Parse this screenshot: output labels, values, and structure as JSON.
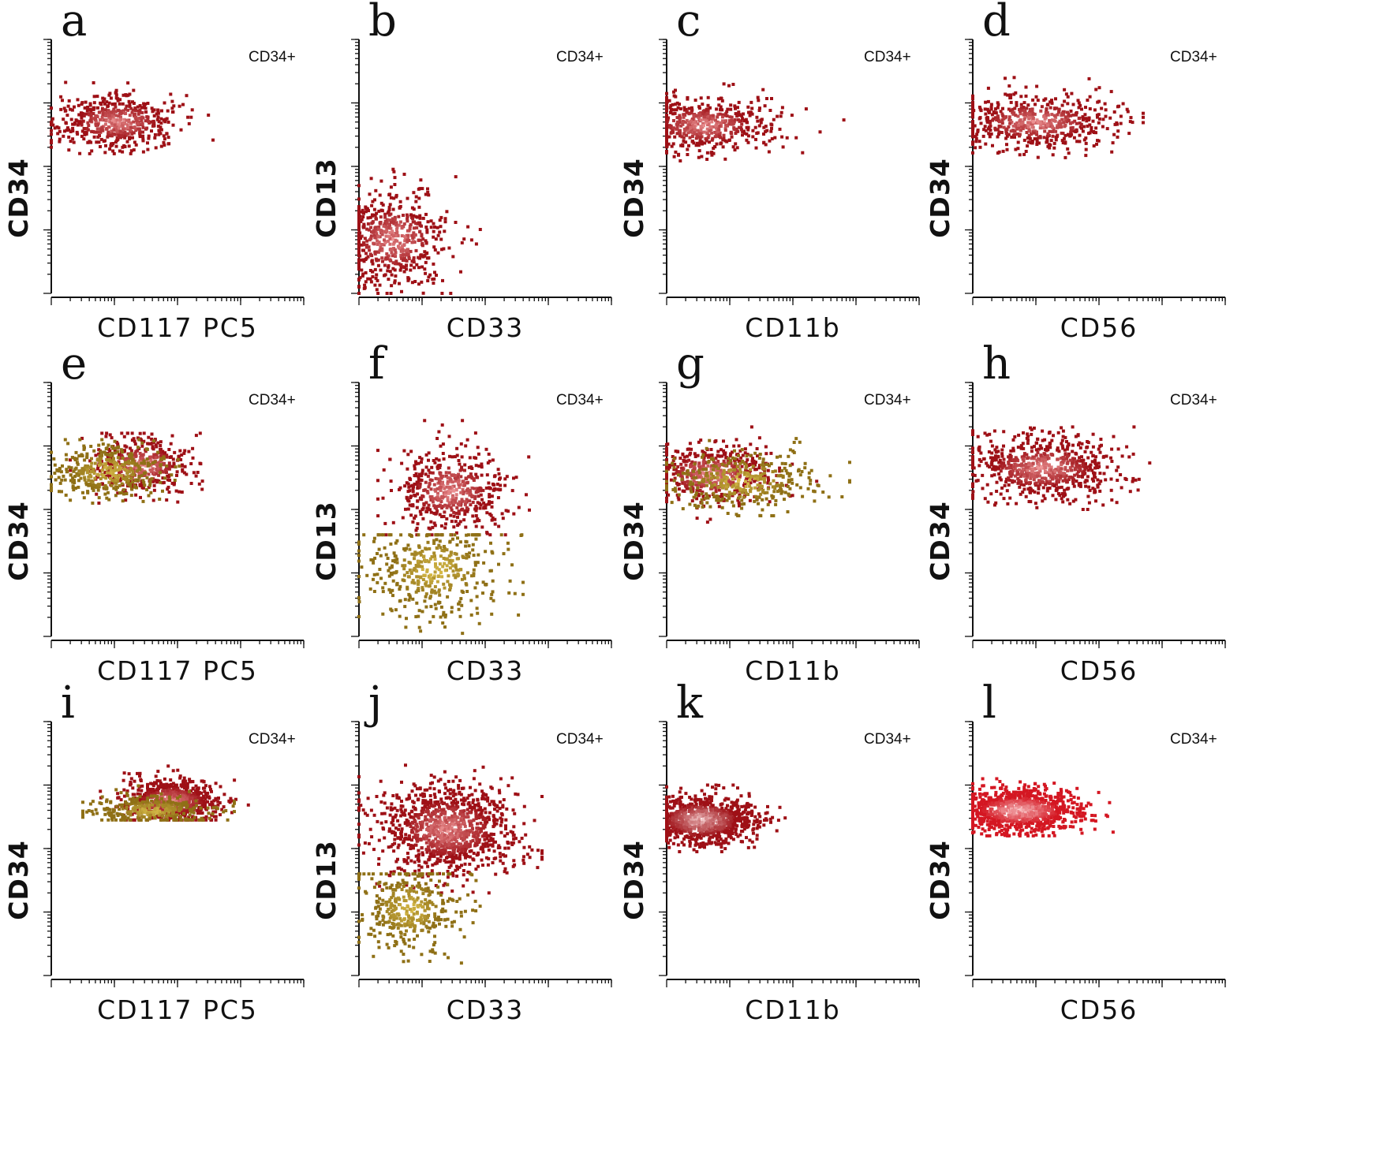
{
  "chart_data": [
    {
      "letter": "a",
      "type": "scatter",
      "gate_label": "CD34+",
      "xlabel": "CD117  PC5",
      "ylabel": "CD34",
      "populations": [
        {
          "color": "#9e1016",
          "hot_color": "#f7a6a6",
          "count": 520,
          "x_center": 1.05,
          "x_spread": 0.5,
          "y_center": 2.7,
          "y_spread": 0.22,
          "x_range": [
            0,
            2.8
          ],
          "y_range": [
            2.2,
            3.4
          ]
        }
      ]
    },
    {
      "letter": "b",
      "type": "scatter",
      "gate_label": "CD34+",
      "xlabel": "CD33",
      "ylabel": "CD13",
      "populations": [
        {
          "color": "#9e1016",
          "hot_color": "#f7a6a6",
          "count": 560,
          "x_center": 0.55,
          "x_spread": 0.45,
          "y_center": 0.85,
          "y_spread": 0.38,
          "x_range": [
            0,
            2.6
          ],
          "y_range": [
            0,
            2.4
          ]
        }
      ]
    },
    {
      "letter": "c",
      "type": "scatter",
      "gate_label": "CD34+",
      "xlabel": "CD11b",
      "ylabel": "CD34",
      "populations": [
        {
          "color": "#9e1016",
          "hot_color": "#f7a6a6",
          "count": 520,
          "x_center": 0.6,
          "x_spread": 0.55,
          "y_center": 2.65,
          "y_spread": 0.22,
          "x_range": [
            0,
            3.3
          ],
          "y_range": [
            2,
            3.3
          ]
        }
      ]
    },
    {
      "letter": "d",
      "type": "scatter",
      "gate_label": "CD34+",
      "xlabel": "CD56",
      "ylabel": "CD34",
      "populations": [
        {
          "color": "#9e1016",
          "hot_color": "#f7a6a6",
          "count": 560,
          "x_center": 1.0,
          "x_spread": 0.65,
          "y_center": 2.7,
          "y_spread": 0.22,
          "x_range": [
            0,
            2.7
          ],
          "y_range": [
            2,
            3.4
          ]
        }
      ]
    },
    {
      "letter": "e",
      "type": "scatter",
      "gate_label": "CD34+",
      "xlabel": "CD117  PC5",
      "ylabel": "CD34",
      "populations": [
        {
          "color": "#9e1016",
          "hot_color": "#f7a6a6",
          "count": 420,
          "x_center": 1.45,
          "x_spread": 0.4,
          "y_center": 2.7,
          "y_spread": 0.22,
          "x_range": [
            0.3,
            3.0
          ],
          "y_range": [
            2.1,
            3.2
          ]
        },
        {
          "color": "#8f7016",
          "hot_color": "#e8cc55",
          "count": 380,
          "x_center": 0.9,
          "x_spread": 0.45,
          "y_center": 2.6,
          "y_spread": 0.22,
          "x_range": [
            0,
            2.2
          ],
          "y_range": [
            2.1,
            3.1
          ]
        }
      ]
    },
    {
      "letter": "f",
      "type": "scatter",
      "gate_label": "CD34+",
      "xlabel": "CD33",
      "ylabel": "CD13",
      "populations": [
        {
          "color": "#9e1016",
          "hot_color": "#f7a6a6",
          "count": 520,
          "x_center": 1.45,
          "x_spread": 0.45,
          "y_center": 2.3,
          "y_spread": 0.33,
          "x_range": [
            0.3,
            2.7
          ],
          "y_range": [
            1.6,
            3.4
          ]
        },
        {
          "color": "#8f7016",
          "hot_color": "#e8cc55",
          "count": 420,
          "x_center": 1.2,
          "x_spread": 0.55,
          "y_center": 1.05,
          "y_spread": 0.4,
          "x_range": [
            0,
            2.6
          ],
          "y_range": [
            0,
            1.6
          ]
        }
      ]
    },
    {
      "letter": "g",
      "type": "scatter",
      "gate_label": "CD34+",
      "xlabel": "CD11b",
      "ylabel": "CD34",
      "populations": [
        {
          "color": "#9e1016",
          "hot_color": "#f7a6a6",
          "count": 480,
          "x_center": 0.7,
          "x_spread": 0.5,
          "y_center": 2.55,
          "y_spread": 0.25,
          "x_range": [
            0,
            2.6
          ],
          "y_range": [
            1.8,
            3.3
          ]
        },
        {
          "color": "#8f7016",
          "hot_color": "#e8cc55",
          "count": 360,
          "x_center": 1.2,
          "x_spread": 0.6,
          "y_center": 2.45,
          "y_spread": 0.25,
          "x_range": [
            0,
            2.9
          ],
          "y_range": [
            1.9,
            3.2
          ]
        }
      ]
    },
    {
      "letter": "h",
      "type": "scatter",
      "gate_label": "CD34+",
      "xlabel": "CD56",
      "ylabel": "CD34",
      "populations": [
        {
          "color": "#9e1016",
          "hot_color": "#f7a6a6",
          "count": 700,
          "x_center": 1.1,
          "x_spread": 0.6,
          "y_center": 2.65,
          "y_spread": 0.25,
          "x_range": [
            0,
            3.2
          ],
          "y_range": [
            2,
            3.3
          ]
        }
      ]
    },
    {
      "letter": "i",
      "type": "scatter",
      "gate_label": "CD34+",
      "xlabel": "CD117  PC5",
      "ylabel": "CD34",
      "populations": [
        {
          "color": "#9e1016",
          "hot_color": "#f7a6a6",
          "count": 700,
          "x_center": 1.9,
          "x_spread": 0.4,
          "y_center": 2.75,
          "y_spread": 0.17,
          "x_range": [
            0.2,
            3.9
          ],
          "y_range": [
            2.45,
            3.3
          ]
        },
        {
          "color": "#8f7016",
          "hot_color": "#e8cc55",
          "count": 340,
          "x_center": 1.6,
          "x_spread": 0.45,
          "y_center": 2.6,
          "y_spread": 0.12,
          "x_range": [
            0.5,
            2.9
          ],
          "y_range": [
            2.45,
            3.0
          ]
        }
      ]
    },
    {
      "letter": "j",
      "type": "scatter",
      "gate_label": "CD34+",
      "xlabel": "CD33",
      "ylabel": "CD13",
      "populations": [
        {
          "color": "#9e1016",
          "hot_color": "#f7a6a6",
          "count": 1100,
          "x_center": 1.4,
          "x_spread": 0.55,
          "y_center": 2.3,
          "y_spread": 0.35,
          "x_range": [
            0,
            2.9
          ],
          "y_range": [
            1.3,
            3.5
          ]
        },
        {
          "color": "#8f7016",
          "hot_color": "#e8cc55",
          "count": 380,
          "x_center": 0.8,
          "x_spread": 0.4,
          "y_center": 1.05,
          "y_spread": 0.35,
          "x_range": [
            0,
            2.2
          ],
          "y_range": [
            0,
            1.6
          ]
        }
      ]
    },
    {
      "letter": "k",
      "type": "scatter",
      "gate_label": "CD34+",
      "xlabel": "CD11b",
      "ylabel": "CD34",
      "populations": [
        {
          "color": "#9e1016",
          "hot_color": "#ffe6e6",
          "count": 1000,
          "x_center": 0.55,
          "x_spread": 0.45,
          "y_center": 2.45,
          "y_spread": 0.2,
          "x_range": [
            0,
            2.6
          ],
          "y_range": [
            1.95,
            3.0
          ]
        }
      ]
    },
    {
      "letter": "l",
      "type": "scatter",
      "gate_label": "CD34+",
      "xlabel": "CD56",
      "ylabel": "CD34",
      "populations": [
        {
          "color": "#d41722",
          "hot_color": "#ffe6e6",
          "count": 1000,
          "x_center": 0.75,
          "x_spread": 0.5,
          "y_center": 2.6,
          "y_spread": 0.17,
          "x_range": [
            0,
            3.0
          ],
          "y_range": [
            2.2,
            3.1
          ]
        }
      ]
    }
  ]
}
